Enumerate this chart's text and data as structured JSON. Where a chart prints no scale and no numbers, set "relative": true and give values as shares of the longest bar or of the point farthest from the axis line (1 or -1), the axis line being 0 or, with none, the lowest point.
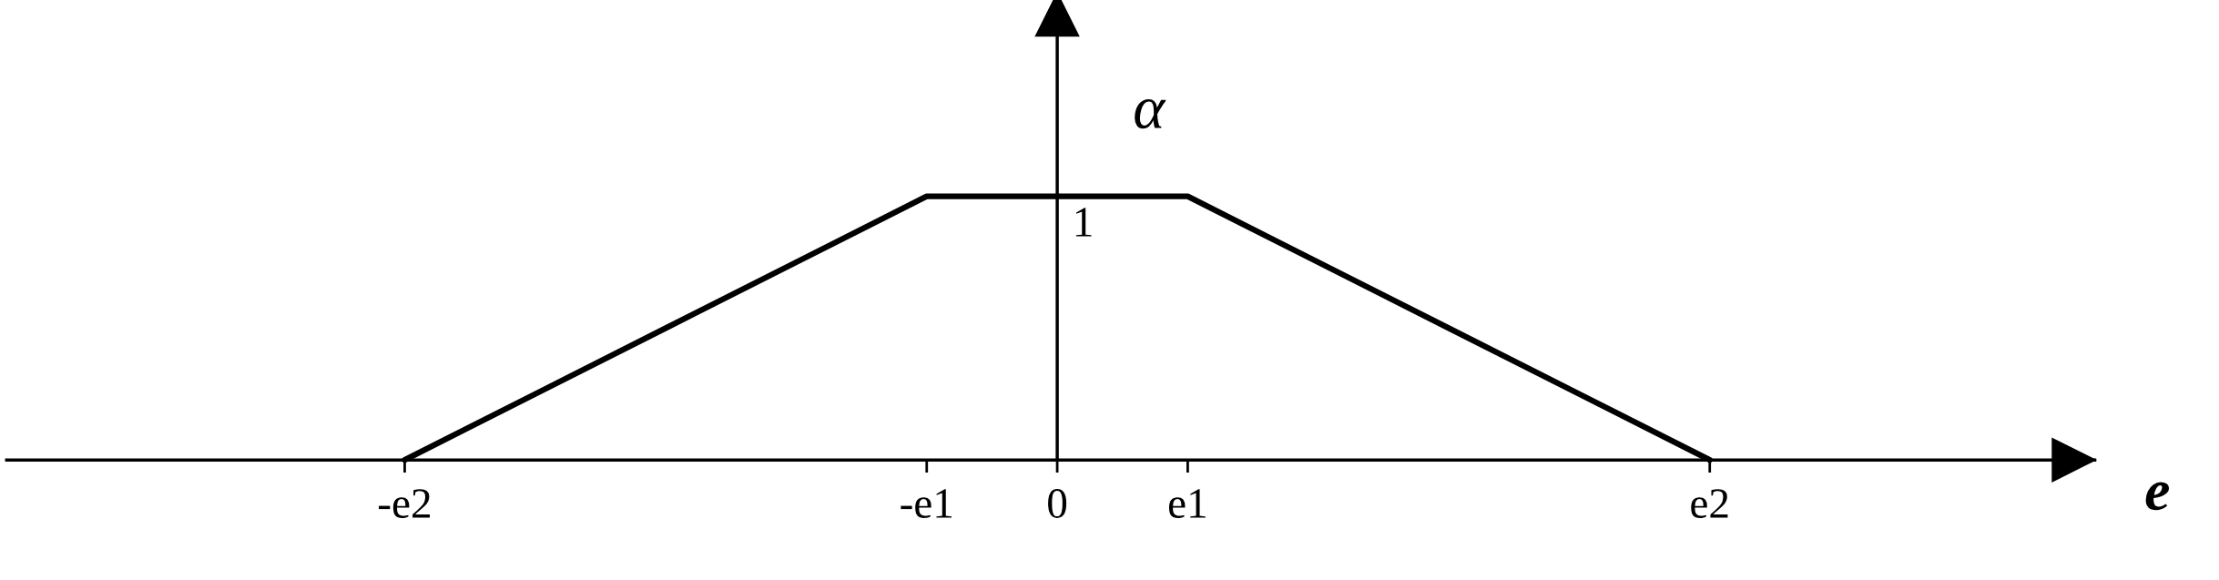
{
  "chart_data": {
    "type": "line",
    "ylabel": "α",
    "relative": true,
    "categories": [
      "-e2",
      null,
      null,
      null,
      "-e1",
      "0",
      "e1",
      null,
      null,
      null,
      "e2"
    ],
    "series": [
      {
        "color": "#000000",
        "values": [
          0,
          0.25,
          0.5,
          0.75,
          1,
          1,
          1,
          0.75,
          0.5,
          0.25,
          0
        ]
      }
    ],
    "annotations": [
      {
        "text": "1",
        "x": "0",
        "y": 1
      },
      "e"
    ],
    "legend": false,
    "marker": "none",
    "line_style": "solid"
  }
}
